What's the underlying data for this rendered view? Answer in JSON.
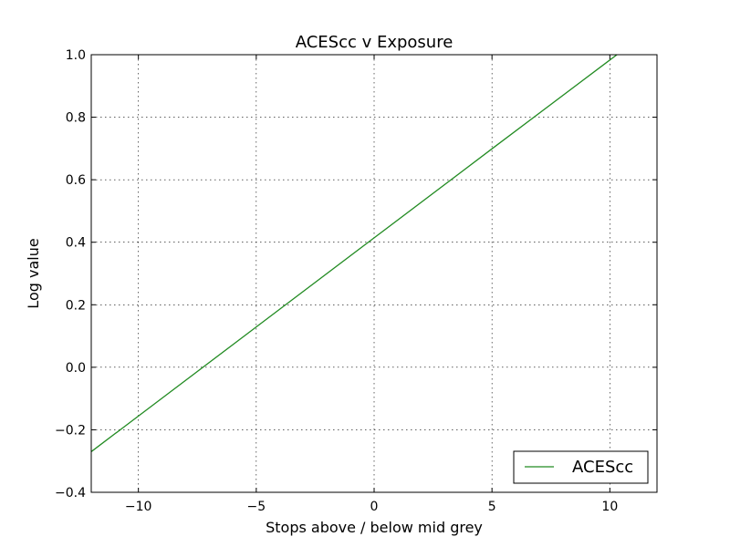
{
  "chart_data": {
    "type": "line",
    "title": "ACEScc v Exposure",
    "xlabel": "Stops above / below mid grey",
    "ylabel": "Log value",
    "xlim": [
      -12,
      12
    ],
    "ylim": [
      -0.4,
      1.0
    ],
    "xticks": [
      -10,
      -5,
      0,
      5,
      10
    ],
    "xtick_labels": [
      "−10",
      "−5",
      "0",
      "5",
      "10"
    ],
    "yticks": [
      -0.4,
      -0.2,
      0.0,
      0.2,
      0.4,
      0.6,
      0.8,
      1.0
    ],
    "ytick_labels": [
      "−0.4",
      "−0.2",
      "0.0",
      "0.2",
      "0.4",
      "0.6",
      "0.8",
      "1.0"
    ],
    "grid": true,
    "legend_position": "lower-right",
    "series": [
      {
        "name": "ACEScc",
        "color": "#228B22",
        "x": [
          -12,
          -10,
          -5,
          0,
          5,
          10,
          10.3
        ],
        "y": [
          -0.27,
          -0.156,
          0.129,
          0.414,
          0.699,
          0.983,
          1.0
        ]
      }
    ]
  }
}
